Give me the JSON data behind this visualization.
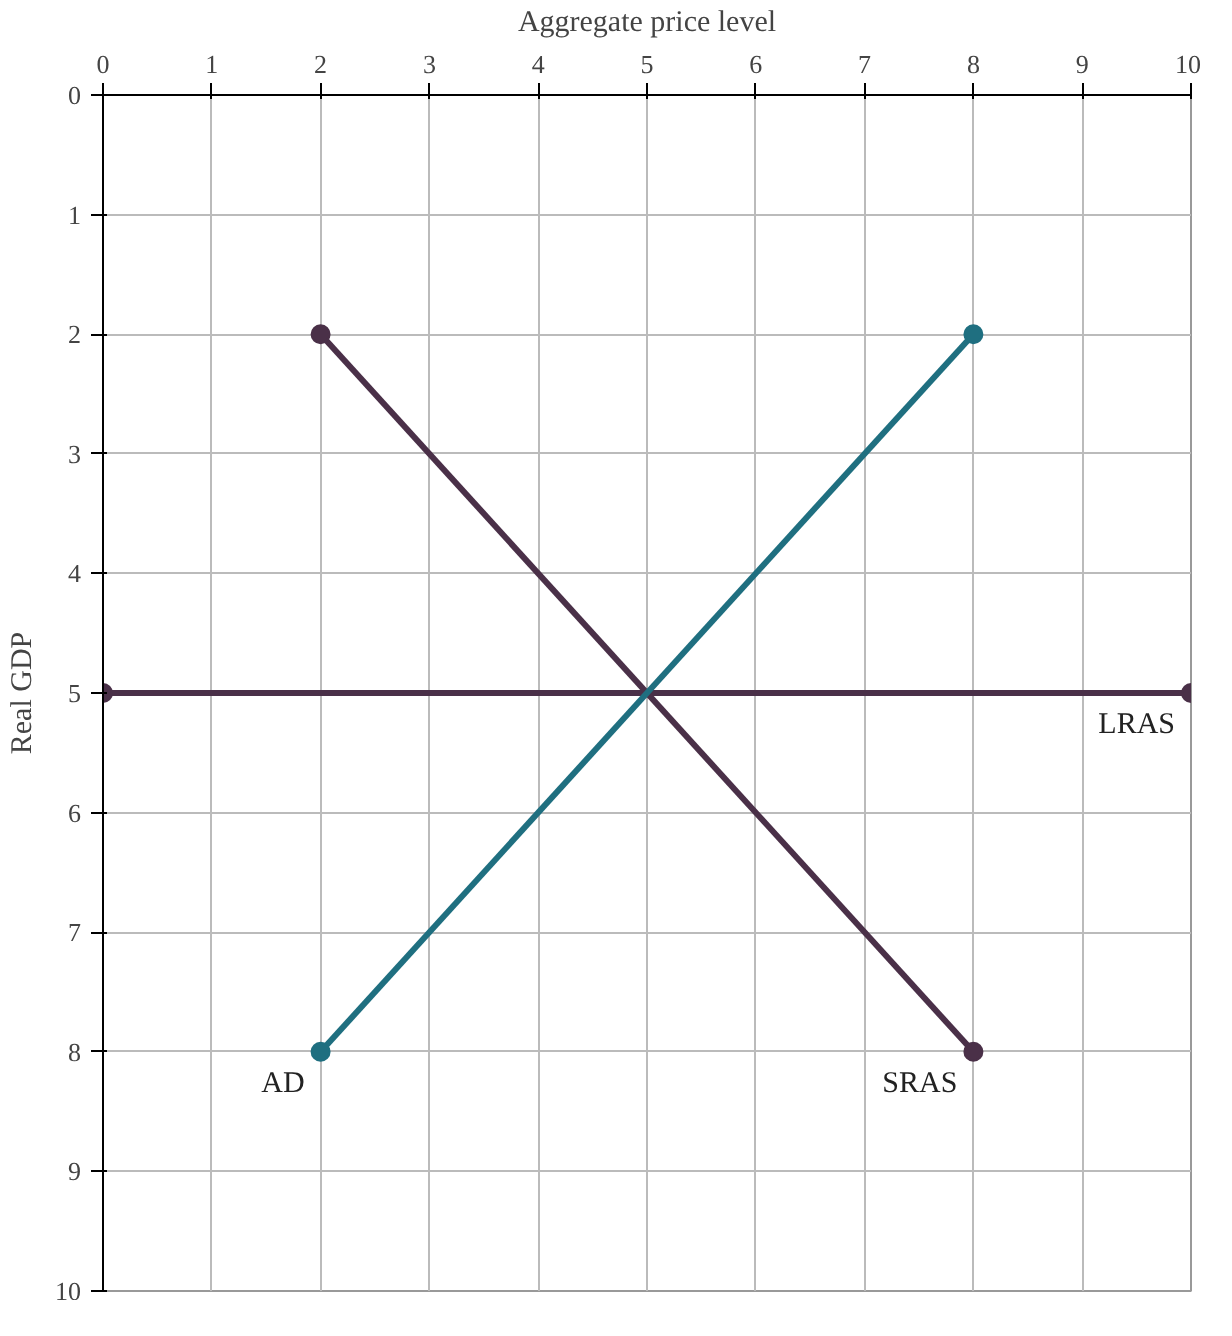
{
  "chart_data": {
    "type": "line",
    "xlabel": "Aggregate price level",
    "ylabel": "Real GDP",
    "xlim": [
      0,
      10
    ],
    "ylim": [
      10,
      0
    ],
    "xticks": [
      0,
      1,
      2,
      3,
      4,
      5,
      6,
      7,
      8,
      9,
      10
    ],
    "yticks": [
      0,
      1,
      2,
      3,
      4,
      5,
      6,
      7,
      8,
      9,
      10
    ],
    "grid": true,
    "marker": "circle",
    "line_style": "solid",
    "series": [
      {
        "name": "LRAS",
        "color": "#4a3048",
        "x": [
          0,
          10
        ],
        "values": [
          5,
          5
        ]
      },
      {
        "name": "SRAS",
        "color": "#4a3048",
        "x": [
          2,
          8
        ],
        "values": [
          2,
          8
        ]
      },
      {
        "name": "AD",
        "color": "#1f6f80",
        "x": [
          8,
          2
        ],
        "values": [
          2,
          8
        ]
      }
    ]
  }
}
